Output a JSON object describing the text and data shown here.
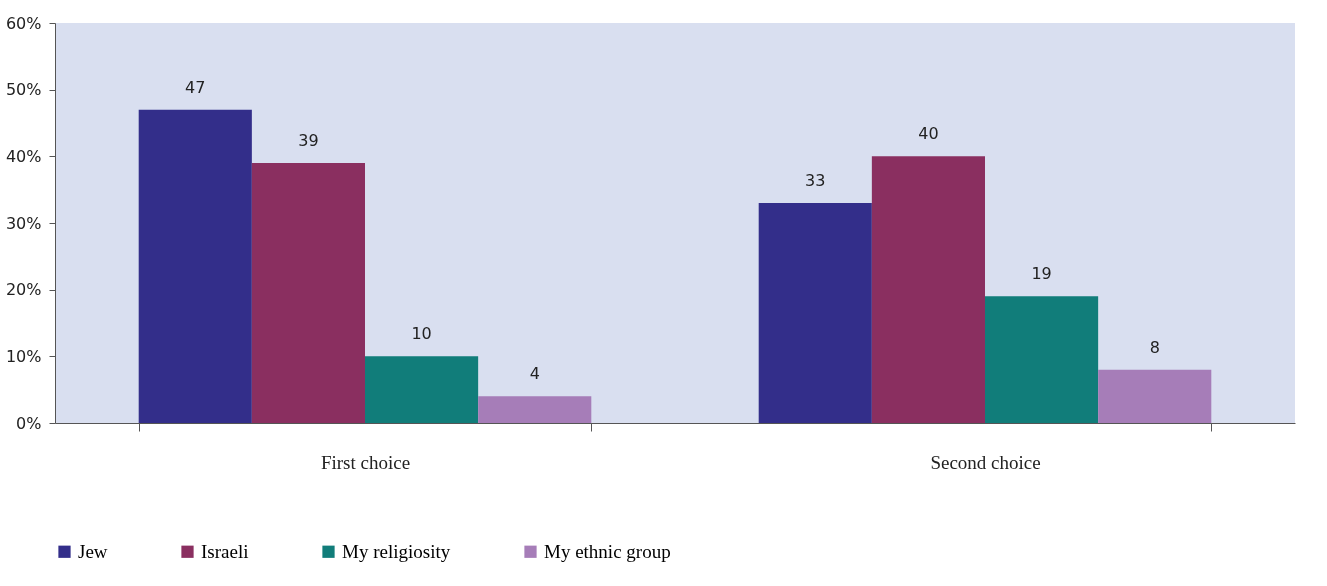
{
  "chart_data": {
    "type": "bar",
    "categories": [
      "First choice",
      "Second choice"
    ],
    "series": [
      {
        "name": "Jew",
        "color": "#332e8a",
        "values": [
          47,
          33
        ]
      },
      {
        "name": "Israeli",
        "color": "#8a2f60",
        "values": [
          39,
          40
        ]
      },
      {
        "name": "My religiosity",
        "color": "#117d7a",
        "values": [
          10,
          19
        ]
      },
      {
        "name": "My ethnic group",
        "color": "#a67db8",
        "values": [
          4,
          8
        ]
      }
    ],
    "ylim": [
      0,
      60
    ],
    "yticks": [
      {
        "value": 0,
        "label": "0%"
      },
      {
        "value": 10,
        "label": "10%"
      },
      {
        "value": 20,
        "label": "20%"
      },
      {
        "value": 30,
        "label": "30%"
      },
      {
        "value": 40,
        "label": "40%"
      },
      {
        "value": 50,
        "label": "50%"
      },
      {
        "value": 60,
        "label": "60%"
      }
    ],
    "data_labels": true,
    "grid": false,
    "legend": "bottom left"
  }
}
